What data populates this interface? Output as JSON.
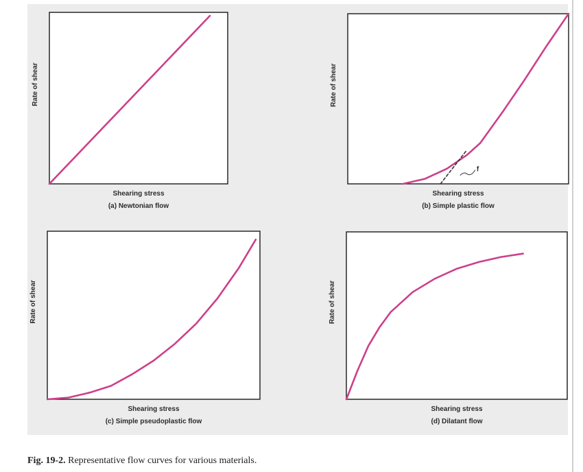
{
  "figure": {
    "number": "Fig. 19-2.",
    "caption": "Representative flow curves for various materials.",
    "curve_color": "#cc3f8a",
    "background_color": "#ececec"
  },
  "chart_data": [
    {
      "type": "line",
      "panel": "(a) Newtonian flow",
      "xlabel": "Shearing stress",
      "ylabel": "Rate of shear",
      "xlim": [
        0,
        1
      ],
      "ylim": [
        0,
        1
      ],
      "grid": false,
      "series": [
        {
          "x": [
            0,
            0.9
          ],
          "y": [
            0,
            0.98
          ]
        }
      ]
    },
    {
      "type": "line",
      "panel": "(b) Simple plastic flow",
      "xlabel": "Shearing stress",
      "ylabel": "Rate of shear",
      "xlim": [
        0,
        1
      ],
      "ylim": [
        0,
        1
      ],
      "grid": false,
      "annotation": "f",
      "series": [
        {
          "x": [
            0.25,
            0.35,
            0.45,
            0.54,
            0.6,
            0.7,
            0.8,
            0.9,
            1.0
          ],
          "y": [
            0,
            0.03,
            0.09,
            0.17,
            0.24,
            0.42,
            0.61,
            0.81,
            1.0
          ]
        },
        {
          "x": [
            0.42,
            0.54
          ],
          "y": [
            0,
            0.2
          ]
        }
      ]
    },
    {
      "type": "line",
      "panel": "(c) Simple pseudoplastic flow",
      "xlabel": "Shearing stress",
      "ylabel": "Rate of shear",
      "xlim": [
        0,
        1
      ],
      "ylim": [
        0,
        1
      ],
      "grid": false,
      "series": [
        {
          "x": [
            0,
            0.1,
            0.2,
            0.3,
            0.4,
            0.5,
            0.6,
            0.7,
            0.8,
            0.9,
            0.98
          ],
          "y": [
            0,
            0.01,
            0.04,
            0.08,
            0.15,
            0.23,
            0.33,
            0.45,
            0.6,
            0.78,
            0.95
          ]
        }
      ]
    },
    {
      "type": "line",
      "panel": "(d) Dilatant flow",
      "xlabel": "Shearing stress",
      "ylabel": "Rate of shear",
      "xlim": [
        0,
        1
      ],
      "ylim": [
        0,
        1
      ],
      "grid": false,
      "series": [
        {
          "x": [
            0,
            0.05,
            0.1,
            0.15,
            0.2,
            0.3,
            0.4,
            0.5,
            0.6,
            0.7,
            0.8
          ],
          "y": [
            0,
            0.17,
            0.32,
            0.43,
            0.52,
            0.64,
            0.72,
            0.78,
            0.82,
            0.85,
            0.87
          ]
        }
      ]
    }
  ]
}
